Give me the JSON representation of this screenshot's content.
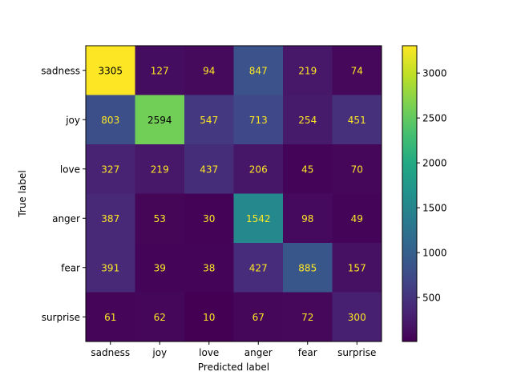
{
  "chart_data": {
    "type": "heatmap",
    "title": "",
    "xlabel": "Predicted label",
    "ylabel": "True label",
    "x_categories": [
      "sadness",
      "joy",
      "love",
      "anger",
      "fear",
      "surprise"
    ],
    "y_categories": [
      "sadness",
      "joy",
      "love",
      "anger",
      "fear",
      "surprise"
    ],
    "values": [
      [
        3305,
        127,
        94,
        847,
        219,
        74
      ],
      [
        803,
        2594,
        547,
        713,
        254,
        451
      ],
      [
        327,
        219,
        437,
        206,
        45,
        70
      ],
      [
        387,
        53,
        30,
        1542,
        98,
        49
      ],
      [
        391,
        39,
        38,
        427,
        885,
        157
      ],
      [
        61,
        62,
        10,
        67,
        72,
        300
      ]
    ],
    "colormap": "viridis",
    "value_range": [
      10,
      3305
    ],
    "colorbar_ticks": [
      500,
      1000,
      1500,
      2000,
      2500,
      3000
    ],
    "text_color_low": "#fde725",
    "text_color_high": "#000000",
    "grid": false,
    "legend": "colorbar-right"
  }
}
